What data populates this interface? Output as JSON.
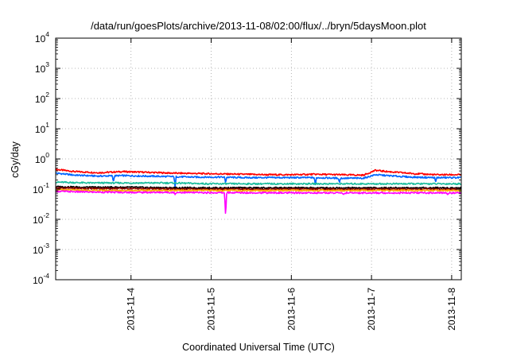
{
  "chart_data": {
    "type": "line",
    "title": "/data/run/goesPlots/archive/2013-11-08/02:00/flux/../bryn/5daysMoon.plot",
    "xlabel": "Coordinated Universal Time (UTC)",
    "ylabel": "cGy/day",
    "x_unit": "days since 2013-11-03 00:00 UTC",
    "xlim": [
      0.06,
      5.12
    ],
    "x_ticks": [
      {
        "label": "2013-11-4",
        "x": 1
      },
      {
        "label": "2013-11-5",
        "x": 2
      },
      {
        "label": "2013-11-6",
        "x": 3
      },
      {
        "label": "2013-11-7",
        "x": 4
      },
      {
        "label": "2013-11-8",
        "x": 5
      }
    ],
    "y_scale": "log",
    "ylim": [
      0.0001,
      10000
    ],
    "y_ticks": [
      {
        "base": "10",
        "exp": "-4",
        "value": 0.0001
      },
      {
        "base": "10",
        "exp": "-3",
        "value": 0.001
      },
      {
        "base": "10",
        "exp": "-2",
        "value": 0.01
      },
      {
        "base": "10",
        "exp": "-1",
        "value": 0.1
      },
      {
        "base": "10",
        "exp": "0",
        "value": 1
      },
      {
        "base": "10",
        "exp": "1",
        "value": 10
      },
      {
        "base": "10",
        "exp": "2",
        "value": 100
      },
      {
        "base": "10",
        "exp": "3",
        "value": 1000
      },
      {
        "base": "10",
        "exp": "4",
        "value": 10000
      }
    ],
    "grid": true,
    "legend": "none",
    "series": [
      {
        "color": "#ff0000",
        "x": [
          0.06,
          0.3,
          0.6,
          0.9,
          1.2,
          1.5,
          1.8,
          2.1,
          2.4,
          2.7,
          3.0,
          3.3,
          3.6,
          3.9,
          4.05,
          4.2,
          4.5,
          4.8,
          5.12
        ],
        "values": [
          0.45,
          0.38,
          0.35,
          0.38,
          0.36,
          0.34,
          0.33,
          0.32,
          0.31,
          0.3,
          0.3,
          0.31,
          0.3,
          0.29,
          0.42,
          0.38,
          0.33,
          0.3,
          0.3
        ],
        "dips": []
      },
      {
        "color": "#0066ff",
        "x": [
          0.06,
          0.3,
          0.6,
          0.9,
          1.2,
          1.5,
          1.8,
          2.1,
          2.4,
          2.7,
          3.0,
          3.3,
          3.6,
          3.9,
          4.05,
          4.2,
          4.5,
          4.8,
          5.12
        ],
        "values": [
          0.34,
          0.29,
          0.27,
          0.28,
          0.27,
          0.26,
          0.25,
          0.25,
          0.24,
          0.24,
          0.24,
          0.24,
          0.23,
          0.23,
          0.3,
          0.28,
          0.25,
          0.24,
          0.24
        ],
        "dips": [
          [
            0.78,
            0.17
          ],
          [
            1.55,
            0.11
          ],
          [
            2.18,
            0.16
          ],
          [
            3.3,
            0.13
          ],
          [
            3.6,
            0.16
          ],
          [
            4.8,
            0.17
          ]
        ]
      },
      {
        "color": "#1abc9c",
        "x": [
          0.06,
          0.5,
          1.0,
          1.5,
          2.0,
          2.5,
          3.0,
          3.5,
          4.0,
          4.5,
          5.12
        ],
        "values": [
          0.17,
          0.16,
          0.16,
          0.16,
          0.15,
          0.15,
          0.15,
          0.15,
          0.15,
          0.15,
          0.15
        ],
        "dips": []
      },
      {
        "color": "#000000",
        "x": [
          0.06,
          0.5,
          1.0,
          1.5,
          2.0,
          2.5,
          3.0,
          3.5,
          4.0,
          4.5,
          5.12
        ],
        "values": [
          0.12,
          0.115,
          0.115,
          0.11,
          0.11,
          0.11,
          0.11,
          0.11,
          0.11,
          0.11,
          0.11
        ],
        "dips": []
      },
      {
        "color": "#8b0000",
        "x": [
          0.06,
          0.5,
          1.0,
          1.5,
          2.0,
          2.5,
          3.0,
          3.5,
          4.0,
          4.5,
          5.12
        ],
        "values": [
          0.11,
          0.105,
          0.105,
          0.1,
          0.1,
          0.1,
          0.1,
          0.1,
          0.1,
          0.1,
          0.1
        ],
        "dips": []
      },
      {
        "color": "#ffaa00",
        "x": [
          0.06,
          0.5,
          1.0,
          1.5,
          2.0,
          2.5,
          3.0,
          3.5,
          4.0,
          4.5,
          5.12
        ],
        "values": [
          0.095,
          0.09,
          0.09,
          0.09,
          0.09,
          0.09,
          0.09,
          0.09,
          0.09,
          0.09,
          0.09
        ],
        "dips": []
      },
      {
        "color": "#ff00ff",
        "x": [
          0.06,
          0.5,
          1.0,
          1.5,
          2.0,
          2.5,
          3.0,
          3.5,
          4.0,
          4.5,
          5.12
        ],
        "values": [
          0.085,
          0.08,
          0.078,
          0.078,
          0.076,
          0.076,
          0.075,
          0.075,
          0.075,
          0.075,
          0.075
        ],
        "dips": [
          [
            2.18,
            0.012
          ],
          [
            1.55,
            0.065
          ],
          [
            3.65,
            0.065
          ],
          [
            4.95,
            0.065
          ]
        ]
      }
    ]
  }
}
